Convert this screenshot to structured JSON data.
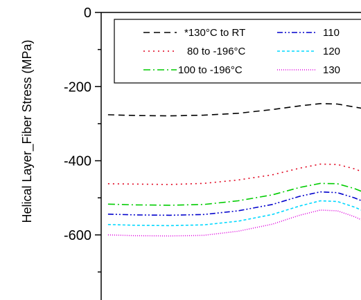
{
  "chart_data": {
    "type": "line",
    "ylabel": "Helical Layer_Fiber Stress (MPa)",
    "xlabel": "",
    "title": "",
    "ylim": [
      -770,
      0
    ],
    "yticks": [
      0,
      -200,
      -400,
      -600
    ],
    "ytick_labels": [
      "0",
      "-200",
      "-400",
      "-600"
    ],
    "xlim": [
      0,
      1
    ],
    "grid": false,
    "legend_position": "top-right",
    "series": [
      {
        "name": "*130°C to RT",
        "color": "#000000",
        "dash": "9,6",
        "points": [
          [
            0.02,
            -276
          ],
          [
            0.1,
            -278
          ],
          [
            0.2,
            -279
          ],
          [
            0.3,
            -277
          ],
          [
            0.4,
            -272
          ],
          [
            0.5,
            -262
          ],
          [
            0.58,
            -252
          ],
          [
            0.64,
            -246
          ],
          [
            0.69,
            -247
          ],
          [
            0.74,
            -255
          ],
          [
            0.8,
            -265
          ]
        ]
      },
      {
        "name": "80 to -196°C",
        "color": "#e0001b",
        "dash": "2,5",
        "points": [
          [
            0.02,
            -462
          ],
          [
            0.1,
            -463
          ],
          [
            0.2,
            -464
          ],
          [
            0.3,
            -461
          ],
          [
            0.4,
            -452
          ],
          [
            0.5,
            -438
          ],
          [
            0.58,
            -420
          ],
          [
            0.64,
            -409
          ],
          [
            0.69,
            -410
          ],
          [
            0.74,
            -422
          ],
          [
            0.8,
            -443
          ]
        ]
      },
      {
        "name": "100 to -196°C",
        "color": "#00cc00",
        "dash": "10,4,2,4",
        "points": [
          [
            0.02,
            -517
          ],
          [
            0.1,
            -519
          ],
          [
            0.2,
            -520
          ],
          [
            0.3,
            -518
          ],
          [
            0.4,
            -508
          ],
          [
            0.5,
            -492
          ],
          [
            0.58,
            -472
          ],
          [
            0.64,
            -461
          ],
          [
            0.69,
            -462
          ],
          [
            0.74,
            -475
          ],
          [
            0.8,
            -497
          ]
        ]
      },
      {
        "name": "110",
        "color": "#0000cc",
        "dash": "8,3,2,3,2,3",
        "points": [
          [
            0.02,
            -544
          ],
          [
            0.1,
            -546
          ],
          [
            0.2,
            -547
          ],
          [
            0.3,
            -545
          ],
          [
            0.4,
            -535
          ],
          [
            0.5,
            -518
          ],
          [
            0.58,
            -496
          ],
          [
            0.64,
            -484
          ],
          [
            0.69,
            -486
          ],
          [
            0.74,
            -500
          ],
          [
            0.8,
            -523
          ]
        ]
      },
      {
        "name": "120",
        "color": "#00d8ff",
        "dash": "4,3",
        "points": [
          [
            0.02,
            -572
          ],
          [
            0.1,
            -574
          ],
          [
            0.2,
            -575
          ],
          [
            0.3,
            -573
          ],
          [
            0.4,
            -563
          ],
          [
            0.5,
            -545
          ],
          [
            0.58,
            -522
          ],
          [
            0.64,
            -508
          ],
          [
            0.69,
            -510
          ],
          [
            0.74,
            -525
          ],
          [
            0.8,
            -549
          ]
        ]
      },
      {
        "name": "130",
        "color": "#dd00dd",
        "dash": "1,2",
        "points": [
          [
            0.02,
            -600
          ],
          [
            0.1,
            -602
          ],
          [
            0.2,
            -603
          ],
          [
            0.3,
            -601
          ],
          [
            0.4,
            -590
          ],
          [
            0.5,
            -571
          ],
          [
            0.58,
            -547
          ],
          [
            0.64,
            -533
          ],
          [
            0.69,
            -535
          ],
          [
            0.74,
            -551
          ],
          [
            0.8,
            -576
          ]
        ]
      }
    ]
  }
}
